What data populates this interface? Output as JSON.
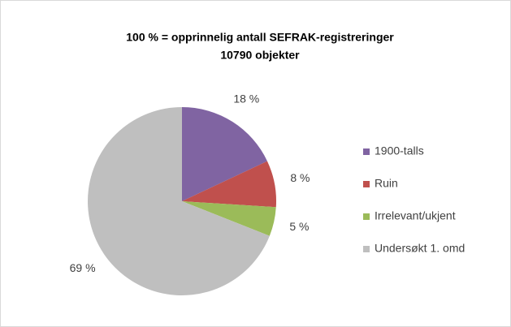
{
  "chart_data": {
    "type": "pie",
    "title": "100 % = opprinnelig antall SEFRAK-registreringer",
    "subtitle": "10790 objekter",
    "categories": [
      "1900-talls",
      "Ruin",
      "Irrelevant/ukjent",
      "Undersøkt 1. omd"
    ],
    "values": [
      18,
      8,
      5,
      69
    ],
    "value_labels": [
      "18 %",
      "8 %",
      "5 %",
      "69 %"
    ],
    "colors": [
      "#8064a2",
      "#c0504d",
      "#9bbb59",
      "#bfbfbf"
    ],
    "legend": "right"
  }
}
